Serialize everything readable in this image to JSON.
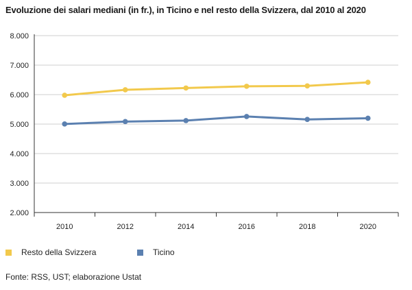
{
  "title": "Evoluzione dei salari mediani (in fr.), in Ticino e nel resto della Svizzera, dal 2010 al 2020",
  "source": "Fonte: RSS, UST; elaborazione Ustat",
  "colors": {
    "resto": "#f2c94c",
    "ticino": "#5b80b0",
    "grid": "#cfcfcf",
    "axis": "#333333"
  },
  "chart_data": {
    "type": "line",
    "categories": [
      "2010",
      "2012",
      "2014",
      "2016",
      "2018",
      "2020"
    ],
    "series": [
      {
        "name": "Resto della Svizzera",
        "color": "#f2c94c",
        "values": [
          5978,
          6164,
          6224,
          6282,
          6296,
          6416
        ]
      },
      {
        "name": "Ticino",
        "color": "#5b80b0",
        "values": [
          5004,
          5085,
          5119,
          5258,
          5158,
          5198
        ]
      }
    ],
    "y_ticks": [
      "2.000",
      "3.000",
      "4.000",
      "5.000",
      "6.000",
      "7.000",
      "8.000"
    ],
    "ylim": [
      2000,
      8000
    ],
    "grid": true,
    "legend": "bottom-left"
  }
}
